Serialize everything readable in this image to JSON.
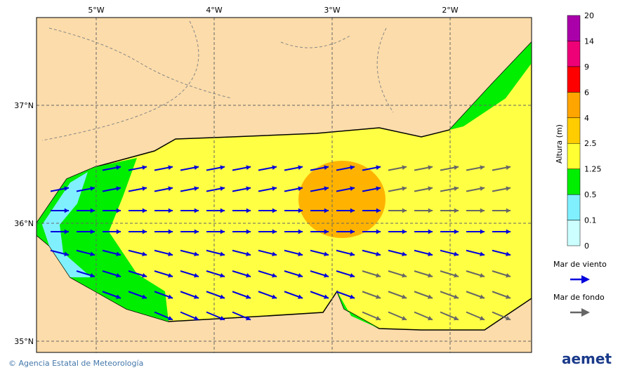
{
  "map": {
    "lon_ticks": [
      "5°W",
      "4°W",
      "3°W",
      "2°W"
    ],
    "lat_ticks": [
      "37°N",
      "36°N",
      "35°N"
    ]
  },
  "colorbar": {
    "title": "Altura (m)",
    "levels": [
      "0",
      "0.1",
      "0.5",
      "1.25",
      "2.5",
      "4",
      "6",
      "9",
      "14",
      "20"
    ],
    "colors": [
      "#ccffff",
      "#80f0ff",
      "#00ee00",
      "#ffff33",
      "#ffcc00",
      "#ffa500",
      "#ff0000",
      "#ee0077",
      "#aa00aa"
    ]
  },
  "legend": [
    {
      "label": "Mar de viento",
      "color": "#0000dd"
    },
    {
      "label": "Mar de fondo",
      "color": "#666666"
    }
  ],
  "footer": {
    "credit": "© Agencia Estatal de Meteorología",
    "logo": "aemet"
  }
}
